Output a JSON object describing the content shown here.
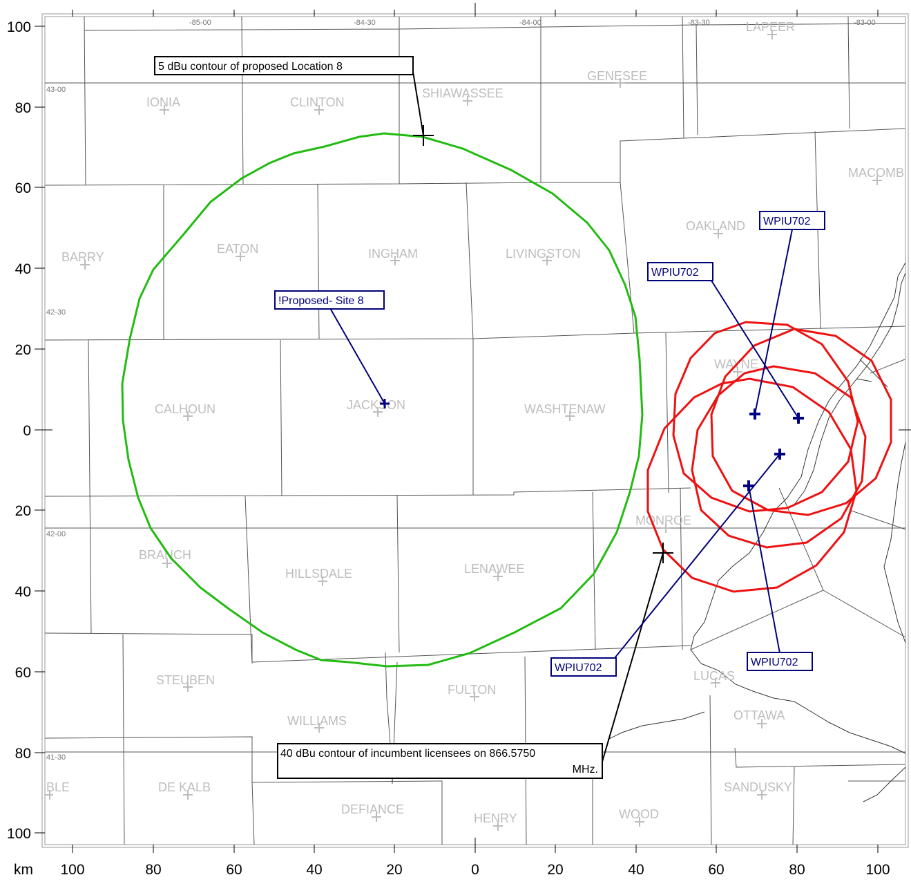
{
  "axis": {
    "unit": "km",
    "x_ticks": [
      "100",
      "80",
      "60",
      "40",
      "20",
      "0",
      "20",
      "40",
      "60",
      "80",
      "100"
    ],
    "y_ticks": [
      "100",
      "80",
      "60",
      "40",
      "20",
      "0",
      "20",
      "40",
      "60",
      "80",
      "100"
    ]
  },
  "graticule": {
    "lon": [
      "-85-00",
      "-84-30",
      "-84-00",
      "-83-30",
      "-83-00"
    ],
    "lat": [
      "43-00",
      "42-30",
      "42-00",
      "41-30"
    ]
  },
  "counties": [
    "LAPEER",
    "GENESEE",
    "SHIAWASSEE",
    "CLINTON",
    "IONIA",
    "MACOMB",
    "OAKLAND",
    "BARRY",
    "EATON",
    "INGHAM",
    "LIVINGSTON",
    "WAYNE",
    "CALHOUN",
    "JACKSON",
    "WASHTENAW",
    "MONROE",
    "BRANCH",
    "HILLSDALE",
    "LENAWEE",
    "STEUBEN",
    "FULTON",
    "LUCAS",
    "WILLIAMS",
    "OTTAWA",
    "BLE",
    "DE KALB",
    "DEFIANCE",
    "HENRY",
    "WOOD",
    "SANDUSKY"
  ],
  "callouts": {
    "proposed_contour": "5 dBu contour of proposed Location 8",
    "proposed_site": "!Proposed- Site 8",
    "incumbent_line1": "40 dBu contour of incumbent licensees on 866.5750",
    "incumbent_line2": "MHz.",
    "licensee_1": "WPIU702",
    "licensee_2": "WPIU702",
    "licensee_3": "WPIU702",
    "licensee_4": "WPIU702"
  },
  "colors": {
    "proposed_contour": "#22bb11",
    "incumbent_contour": "#ee1111",
    "site_marker": "#000080",
    "county_label": "#bdbdbd",
    "boundary": "#555555"
  }
}
